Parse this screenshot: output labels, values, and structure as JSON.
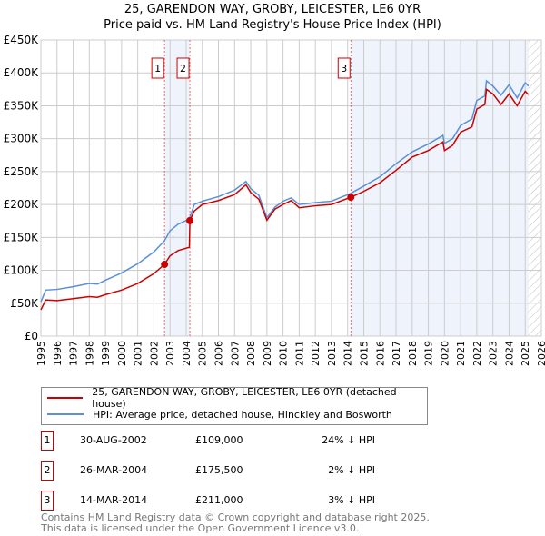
{
  "title": "25, GARENDON WAY, GROBY, LEICESTER, LE6 0YR",
  "subtitle": "Price paid vs. HM Land Registry's House Price Index (HPI)",
  "chart_data": {
    "type": "line",
    "xlim": [
      1995,
      2026
    ],
    "ylim": [
      0,
      450000
    ],
    "x_ticks": [
      "1995",
      "1996",
      "1997",
      "1998",
      "1999",
      "2000",
      "2001",
      "2002",
      "2003",
      "2004",
      "2005",
      "2006",
      "2007",
      "2008",
      "2009",
      "2010",
      "2011",
      "2012",
      "2013",
      "2014",
      "2015",
      "2016",
      "2017",
      "2018",
      "2019",
      "2020",
      "2021",
      "2022",
      "2023",
      "2024",
      "2025",
      "2026"
    ],
    "y_ticks": [
      {
        "v": 0,
        "l": "£0"
      },
      {
        "v": 50000,
        "l": "£50K"
      },
      {
        "v": 100000,
        "l": "£100K"
      },
      {
        "v": 150000,
        "l": "£150K"
      },
      {
        "v": 200000,
        "l": "£200K"
      },
      {
        "v": 250000,
        "l": "£250K"
      },
      {
        "v": 300000,
        "l": "£300K"
      },
      {
        "v": 350000,
        "l": "£350K"
      },
      {
        "v": 400000,
        "l": "£400K"
      },
      {
        "v": 450000,
        "l": "£450K"
      }
    ],
    "series": [
      {
        "name": "25, GARENDON WAY, GROBY, LEICESTER, LE6 0YR (detached house)",
        "color": "#cc0000",
        "x": [
          1995,
          1995.3,
          1996,
          1997,
          1998,
          1998.5,
          1999,
          2000,
          2001,
          2002,
          2002.66,
          2003,
          2003.5,
          2004.2,
          2004.23,
          2004.5,
          2005,
          2006,
          2007,
          2007.7,
          2008,
          2008.5,
          2009,
          2009.5,
          2010,
          2010.5,
          2011,
          2012,
          2013,
          2014.2,
          2015,
          2016,
          2017,
          2018,
          2019,
          2019.9,
          2020,
          2020.5,
          2021,
          2021.7,
          2022,
          2022.5,
          2022.6,
          2023,
          2023.5,
          2024,
          2024.5,
          2025,
          2025.2
        ],
        "y": [
          40000,
          55000,
          54000,
          57000,
          60000,
          59000,
          63000,
          70000,
          80000,
          95000,
          109000,
          122000,
          130000,
          135000,
          175500,
          190000,
          200000,
          206000,
          215000,
          230000,
          218000,
          208000,
          176000,
          193000,
          200000,
          206000,
          195000,
          198000,
          200000,
          211000,
          220000,
          233000,
          252000,
          272000,
          282000,
          295000,
          282000,
          290000,
          310000,
          318000,
          345000,
          352000,
          375000,
          368000,
          352000,
          368000,
          350000,
          372000,
          367000
        ]
      },
      {
        "name": "HPI: Average price, detached house, Hinckley and Bosworth",
        "color": "#5b8fd6",
        "x": [
          1995,
          1995.3,
          1996,
          1997,
          1998,
          1998.5,
          1999,
          2000,
          2001,
          2002,
          2002.66,
          2003,
          2003.5,
          2004.2,
          2004.5,
          2005,
          2006,
          2007,
          2007.7,
          2008,
          2008.5,
          2009,
          2009.5,
          2010,
          2010.5,
          2011,
          2012,
          2013,
          2014.2,
          2015,
          2016,
          2017,
          2018,
          2019,
          2019.9,
          2020,
          2020.5,
          2021,
          2021.7,
          2022,
          2022.5,
          2022.6,
          2023,
          2023.5,
          2024,
          2024.5,
          2025,
          2025.2
        ],
        "y": [
          52000,
          70000,
          71000,
          75000,
          80000,
          79000,
          85000,
          96000,
          110000,
          128000,
          145000,
          160000,
          170000,
          178000,
          200000,
          205000,
          212000,
          222000,
          235000,
          224000,
          214000,
          180000,
          196000,
          205000,
          210000,
          200000,
          203000,
          205000,
          217000,
          228000,
          242000,
          262000,
          280000,
          292000,
          305000,
          293000,
          300000,
          320000,
          330000,
          358000,
          365000,
          388000,
          380000,
          366000,
          382000,
          362000,
          385000,
          380000
        ]
      }
    ],
    "sales": [
      {
        "n": "1",
        "x": 2002.66,
        "y": 109000
      },
      {
        "n": "2",
        "x": 2004.23,
        "y": 175500
      },
      {
        "n": "3",
        "x": 2014.2,
        "y": 211000
      }
    ]
  },
  "legend": [
    "25, GARENDON WAY, GROBY, LEICESTER, LE6 0YR (detached house)",
    "HPI: Average price, detached house, Hinckley and Bosworth"
  ],
  "transactions": [
    {
      "n": "1",
      "date": "30-AUG-2002",
      "price": "£109,000",
      "hpi": "24% ↓ HPI"
    },
    {
      "n": "2",
      "date": "26-MAR-2004",
      "price": "£175,500",
      "hpi": "2% ↓ HPI"
    },
    {
      "n": "3",
      "date": "14-MAR-2014",
      "price": "£211,000",
      "hpi": "3% ↓ HPI"
    }
  ],
  "footer": [
    "Contains HM Land Registry data © Crown copyright and database right 2025.",
    "This data is licensed under the Open Government Licence v3.0."
  ]
}
